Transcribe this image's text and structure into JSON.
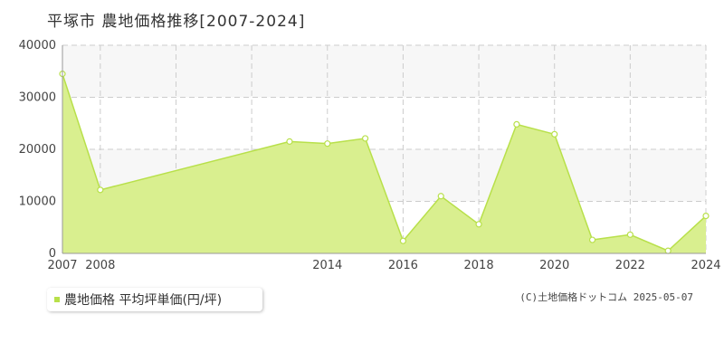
{
  "title": "平塚市 農地価格推移[2007-2024]",
  "legend": {
    "label": "農地価格 平均坪単価(円/坪)"
  },
  "copyright": "(C)土地価格ドットコム 2025-05-07",
  "colors": {
    "series_line": "#b8e04a",
    "series_fill": "#d9ef8f",
    "grid": "#cccccc",
    "band": "#f7f7f7",
    "point_fill": "#ffffff"
  },
  "chart_data": {
    "type": "area",
    "x": [
      2007,
      2008,
      2013,
      2014,
      2015,
      2016,
      2017,
      2018,
      2019,
      2020,
      2021,
      2022,
      2023,
      2024
    ],
    "xlim": [
      2007,
      2024
    ],
    "x_tick_labels": [
      "2007",
      "2008",
      "2014",
      "2016",
      "2018",
      "2020",
      "2022",
      "2024"
    ],
    "x_tick_values": [
      2007,
      2008,
      2014,
      2016,
      2018,
      2020,
      2022,
      2024
    ],
    "x_grid": [
      2008,
      2010,
      2012,
      2014,
      2016,
      2018,
      2020,
      2022,
      2024
    ],
    "series": [
      {
        "name": "農地価格 平均坪単価(円/坪)",
        "values": [
          34500,
          12200,
          21500,
          21100,
          22100,
          2400,
          11000,
          5600,
          24800,
          22900,
          2600,
          3600,
          500,
          7200
        ]
      }
    ],
    "ylim": [
      0,
      40000
    ],
    "y_ticks": [
      0,
      10000,
      20000,
      30000,
      40000
    ],
    "grid": true,
    "legend_position": "bottom-left"
  }
}
